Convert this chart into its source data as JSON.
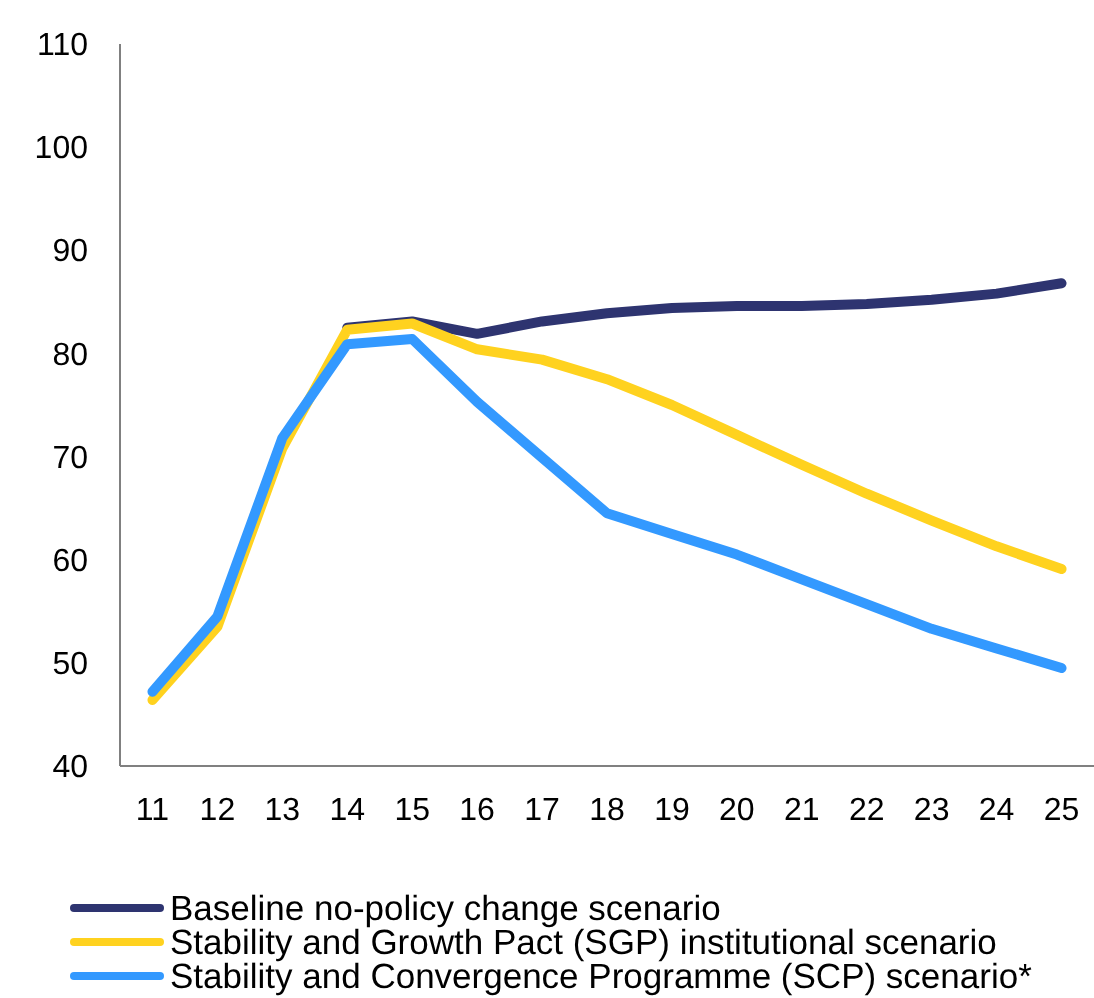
{
  "chart_data": {
    "type": "line",
    "categories": [
      "11",
      "12",
      "13",
      "14",
      "15",
      "16",
      "17",
      "18",
      "19",
      "20",
      "21",
      "22",
      "23",
      "24",
      "25"
    ],
    "ylim": [
      40,
      110
    ],
    "yticks": [
      40,
      50,
      60,
      70,
      80,
      90,
      100,
      110
    ],
    "grid": false,
    "legend": "bottom",
    "line_style": "solid",
    "series": [
      {
        "name": "Baseline no-policy change scenario",
        "color": "#2e3470",
        "values": [
          null,
          null,
          null,
          82.5,
          83.1,
          81.9,
          83.1,
          83.9,
          84.4,
          84.6,
          84.6,
          84.8,
          85.2,
          85.8,
          86.8
        ]
      },
      {
        "name": "Stability and Growth Pact (SGP) institutional scenario",
        "color": "#ffd21f",
        "values": [
          46.4,
          53.5,
          70.8,
          82.3,
          82.9,
          80.4,
          79.4,
          77.5,
          75.0,
          72.1,
          69.2,
          66.4,
          63.8,
          61.3,
          59.1
        ]
      },
      {
        "name": "Stability and Convergence Programme (SCP) scenario*",
        "color": "#3399ff",
        "values": [
          47.2,
          54.5,
          71.8,
          80.9,
          81.4,
          75.3,
          69.9,
          64.5,
          62.5,
          60.5,
          58.1,
          55.7,
          53.3,
          51.4,
          49.5
        ]
      }
    ]
  }
}
